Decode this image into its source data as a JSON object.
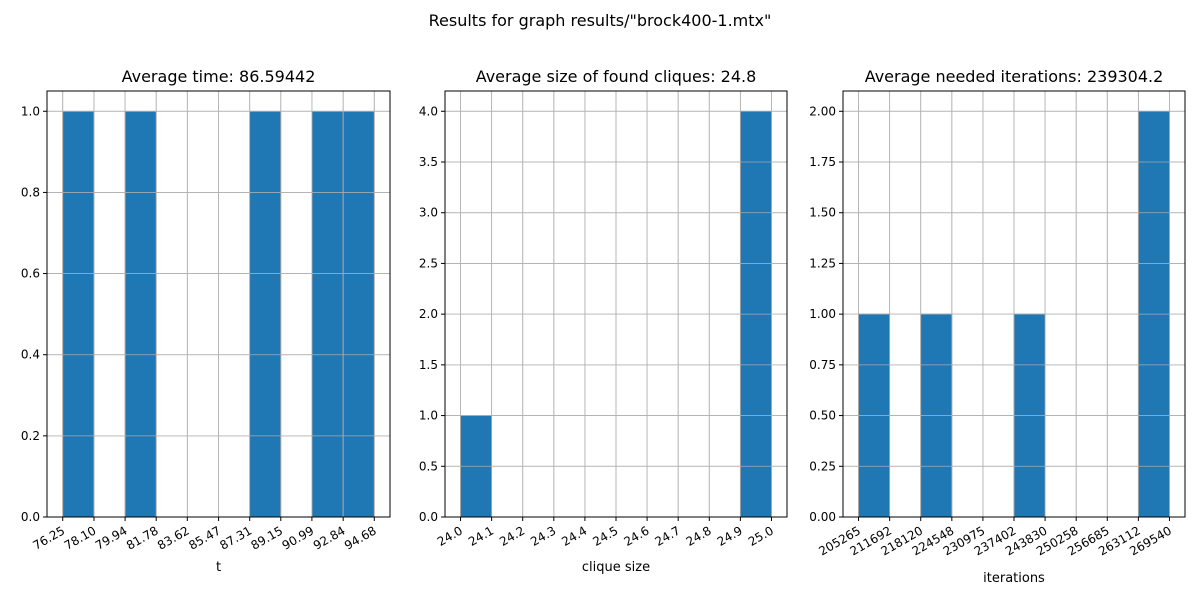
{
  "suptitle": "Results for graph results/\"brock400-1.mtx\"",
  "colors": {
    "bar": "#1f77b4",
    "grid": "#b0b0b0",
    "edge_left": "#d9a386",
    "edge_other": "#7f7f7f"
  },
  "chart_data": [
    {
      "type": "bar",
      "title": "Average time: 86.59442",
      "xlabel": "t",
      "ylabel": "",
      "xlim": [
        75.32,
        95.61
      ],
      "ylim": [
        0,
        1.05
      ],
      "xticks": [
        "76.25",
        "78.10",
        "79.94",
        "81.78",
        "83.62",
        "85.47",
        "87.31",
        "89.15",
        "90.99",
        "92.84",
        "94.68"
      ],
      "xtick_values": [
        76.25,
        78.1,
        79.94,
        81.78,
        83.62,
        85.47,
        87.31,
        89.15,
        90.99,
        92.84,
        94.68
      ],
      "yticks": [
        "0.0",
        "0.2",
        "0.4",
        "0.6",
        "0.8",
        "1.0"
      ],
      "ytick_values": [
        0,
        0.2,
        0.4,
        0.6,
        0.8,
        1.0
      ],
      "bars": [
        {
          "x0": 76.25,
          "x1": 78.1,
          "value": 1
        },
        {
          "x0": 79.94,
          "x1": 81.78,
          "value": 1
        },
        {
          "x0": 87.31,
          "x1": 89.15,
          "value": 1
        },
        {
          "x0": 90.99,
          "x1": 92.84,
          "value": 1
        },
        {
          "x0": 92.84,
          "x1": 94.68,
          "value": 1
        }
      ],
      "grid": true
    },
    {
      "type": "bar",
      "title": "Average size of found cliques: 24.8",
      "xlabel": "clique size",
      "ylabel": "",
      "xlim": [
        23.95,
        25.05
      ],
      "ylim": [
        0,
        4.2
      ],
      "xticks": [
        "24.0",
        "24.1",
        "24.2",
        "24.3",
        "24.4",
        "24.5",
        "24.6",
        "24.7",
        "24.8",
        "24.9",
        "25.0"
      ],
      "xtick_values": [
        24.0,
        24.1,
        24.2,
        24.3,
        24.4,
        24.5,
        24.6,
        24.7,
        24.8,
        24.9,
        25.0
      ],
      "yticks": [
        "0.0",
        "0.5",
        "1.0",
        "1.5",
        "2.0",
        "2.5",
        "3.0",
        "3.5",
        "4.0"
      ],
      "ytick_values": [
        0,
        0.5,
        1.0,
        1.5,
        2.0,
        2.5,
        3.0,
        3.5,
        4.0
      ],
      "bars": [
        {
          "x0": 24.0,
          "x1": 24.1,
          "value": 1
        },
        {
          "x0": 24.9,
          "x1": 25.0,
          "value": 4
        }
      ],
      "grid": true
    },
    {
      "type": "bar",
      "title": "Average needed iterations: 239304.2",
      "xlabel": "iterations",
      "ylabel": "",
      "xlim": [
        202051,
        272754
      ],
      "ylim": [
        0,
        2.1
      ],
      "xticks": [
        "205265",
        "211692",
        "218120",
        "224548",
        "230975",
        "237402",
        "243830",
        "250258",
        "256685",
        "263112",
        "269540"
      ],
      "xtick_values": [
        205265,
        211692,
        218120,
        224548,
        230975,
        237402,
        243830,
        250258,
        256685,
        263112,
        269540
      ],
      "yticks": [
        "0.00",
        "0.25",
        "0.50",
        "0.75",
        "1.00",
        "1.25",
        "1.50",
        "1.75",
        "2.00"
      ],
      "ytick_values": [
        0,
        0.25,
        0.5,
        0.75,
        1.0,
        1.25,
        1.5,
        1.75,
        2.0
      ],
      "bars": [
        {
          "x0": 205265,
          "x1": 211692,
          "value": 1
        },
        {
          "x0": 218120,
          "x1": 224548,
          "value": 1
        },
        {
          "x0": 237402,
          "x1": 243830,
          "value": 1
        },
        {
          "x0": 263112,
          "x1": 269540,
          "value": 2
        }
      ],
      "grid": true
    }
  ]
}
